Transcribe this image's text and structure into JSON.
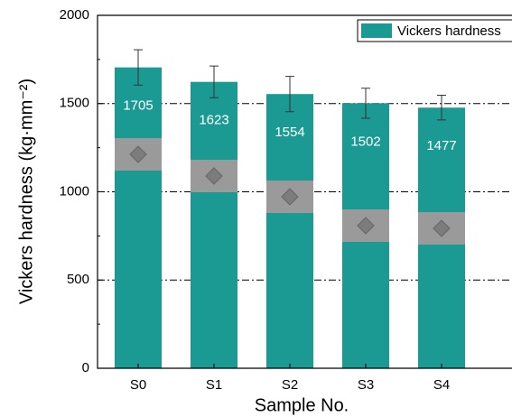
{
  "chart_data": {
    "type": "bar",
    "x_label": "Sample No.",
    "y_label": "Vickers hardness (kg·mm⁻²)",
    "categories": [
      "S0",
      "S1",
      "S2",
      "S3",
      "S4"
    ],
    "series": [
      {
        "name": "Vickers hardness",
        "color": "#1b9a94",
        "values": [
          1705,
          1623,
          1554,
          1502,
          1477
        ],
        "errors": [
          100,
          90,
          100,
          85,
          70
        ]
      }
    ],
    "ylim": [
      0,
      2000
    ],
    "yticks": [
      0,
      500,
      1000,
      1500,
      2000
    ],
    "grid": true,
    "legend": "upper right"
  }
}
